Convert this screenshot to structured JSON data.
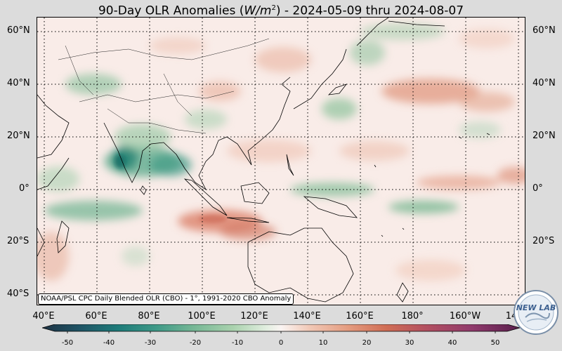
{
  "title": {
    "prefix": "90-Day OLR Anomalies (",
    "unit_base": "W/m",
    "unit_exp": "2",
    "suffix": ") - 2024-05-09 thru 2024-08-07"
  },
  "lat_labels": [
    "60°N",
    "40°N",
    "20°N",
    "0°",
    "20°S",
    "40°S"
  ],
  "lon_labels": [
    "40°E",
    "60°E",
    "80°E",
    "100°E",
    "120°E",
    "140°E",
    "160°E",
    "180°",
    "160°W",
    "14"
  ],
  "credit": "NOAA/PSL CPC Daily Blended OLR (CBO) - 1°, 1991-2020 CBO Anomaly",
  "colorbar": {
    "ticks": [
      "-50",
      "-40",
      "-30",
      "-20",
      "-10",
      "0",
      "10",
      "20",
      "30",
      "40",
      "50"
    ],
    "colors": [
      "#1e3244",
      "#1f5566",
      "#1e7c7a",
      "#3f9a88",
      "#78b896",
      "#aad2ae",
      "#d5e8d5",
      "#f5ecea",
      "#f1c8b6",
      "#e49c80",
      "#d06e55",
      "#b45160",
      "#903a6c",
      "#5a1f4d"
    ]
  },
  "logo": {
    "text": "NEW LAB"
  },
  "colors": {
    "background": "#dcdcdc",
    "ocean_base": "#f9ece8",
    "green": "#3f9a6e",
    "red": "#d0785c"
  }
}
